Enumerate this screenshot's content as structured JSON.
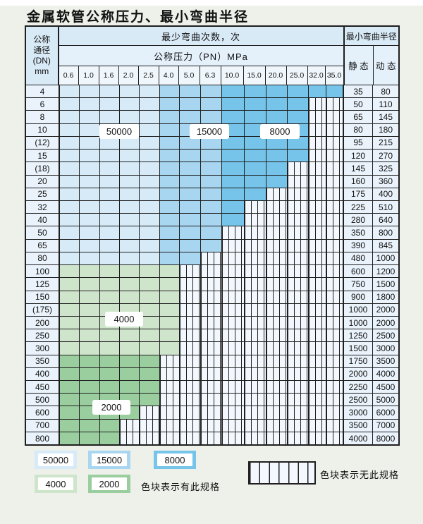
{
  "title": "金属软管公称压力、最小弯曲半径",
  "table": {
    "corner_header": [
      "公称",
      "通径",
      "(DN)",
      "mm"
    ],
    "bend_cycles_header": "最少弯曲次数，次",
    "pressure_header": "公称压力（PN）MPa",
    "radius_header": "最小弯曲半径",
    "static_header": "静 态",
    "dynamic_header": "动 态",
    "pressure_columns": [
      "0.6",
      "1.0",
      "1.6",
      "2.0",
      "2.5",
      "4.0",
      "5.0",
      "6.3",
      "10.0",
      "15.0",
      "20.0",
      "25.0",
      "32.0",
      "35.0"
    ],
    "rows": [
      {
        "dn": "4",
        "colored_cols": 14,
        "group": "blue",
        "static": "35",
        "dynamic": "80"
      },
      {
        "dn": "6",
        "colored_cols": 12,
        "group": "blue",
        "static": "50",
        "dynamic": "110"
      },
      {
        "dn": "8",
        "colored_cols": 12,
        "group": "blue",
        "static": "65",
        "dynamic": "145"
      },
      {
        "dn": "10",
        "colored_cols": 12,
        "group": "blue",
        "static": "80",
        "dynamic": "180"
      },
      {
        "dn": "(12)",
        "colored_cols": 12,
        "group": "blue",
        "static": "95",
        "dynamic": "215"
      },
      {
        "dn": "15",
        "colored_cols": 12,
        "group": "blue",
        "static": "120",
        "dynamic": "270"
      },
      {
        "dn": "(18)",
        "colored_cols": 11,
        "group": "blue",
        "static": "145",
        "dynamic": "325"
      },
      {
        "dn": "20",
        "colored_cols": 11,
        "group": "blue",
        "static": "160",
        "dynamic": "360"
      },
      {
        "dn": "25",
        "colored_cols": 10,
        "group": "blue",
        "static": "175",
        "dynamic": "400"
      },
      {
        "dn": "32",
        "colored_cols": 9,
        "group": "blue",
        "static": "225",
        "dynamic": "510"
      },
      {
        "dn": "40",
        "colored_cols": 9,
        "group": "blue",
        "static": "280",
        "dynamic": "640"
      },
      {
        "dn": "50",
        "colored_cols": 8,
        "group": "blue",
        "static": "350",
        "dynamic": "800"
      },
      {
        "dn": "65",
        "colored_cols": 8,
        "group": "blue",
        "static": "390",
        "dynamic": "845"
      },
      {
        "dn": "80",
        "colored_cols": 7,
        "group": "blue",
        "static": "480",
        "dynamic": "1000"
      },
      {
        "dn": "100",
        "colored_cols": 6,
        "group": "green_light",
        "static": "600",
        "dynamic": "1200"
      },
      {
        "dn": "125",
        "colored_cols": 6,
        "group": "green_light",
        "static": "750",
        "dynamic": "1500"
      },
      {
        "dn": "150",
        "colored_cols": 6,
        "group": "green_light",
        "static": "900",
        "dynamic": "1800"
      },
      {
        "dn": "(175)",
        "colored_cols": 6,
        "group": "green_light",
        "static": "1000",
        "dynamic": "2000"
      },
      {
        "dn": "200",
        "colored_cols": 6,
        "group": "green_light",
        "static": "1000",
        "dynamic": "2000"
      },
      {
        "dn": "250",
        "colored_cols": 6,
        "group": "green_light",
        "static": "1250",
        "dynamic": "2500"
      },
      {
        "dn": "300",
        "colored_cols": 6,
        "group": "green_light",
        "static": "1500",
        "dynamic": "3000"
      },
      {
        "dn": "350",
        "colored_cols": 5,
        "group": "green_dark",
        "static": "1750",
        "dynamic": "3500"
      },
      {
        "dn": "400",
        "colored_cols": 5,
        "group": "green_dark",
        "static": "2000",
        "dynamic": "4000"
      },
      {
        "dn": "450",
        "colored_cols": 5,
        "group": "green_dark",
        "static": "2250",
        "dynamic": "4500"
      },
      {
        "dn": "500",
        "colored_cols": 5,
        "group": "green_dark",
        "static": "2500",
        "dynamic": "5000"
      },
      {
        "dn": "600",
        "colored_cols": 4,
        "group": "green_dark",
        "static": "3000",
        "dynamic": "6000"
      },
      {
        "dn": "700",
        "colored_cols": 3,
        "group": "green_dark",
        "static": "3500",
        "dynamic": "7000"
      },
      {
        "dn": "800",
        "colored_cols": 3,
        "group": "green_dark",
        "static": "4000",
        "dynamic": "8000"
      }
    ]
  },
  "overlay_labels": [
    {
      "text": "50000"
    },
    {
      "text": "15000"
    },
    {
      "text": "8000"
    },
    {
      "text": "4000"
    },
    {
      "text": "2000"
    }
  ],
  "legend": {
    "items": [
      {
        "label": "50000",
        "color_key": "blue_light"
      },
      {
        "label": "15000",
        "color_key": "blue_medium"
      },
      {
        "label": "8000",
        "color_key": "blue_dark"
      },
      {
        "label": "4000",
        "color_key": "green_light"
      },
      {
        "label": "2000",
        "color_key": "green_dark"
      }
    ],
    "has_spec_note": "色块表示有此规格",
    "no_spec_note": "色块表示无此规格"
  },
  "colors": {
    "blue_light": "#d6eaf8",
    "blue_medium": "#a8d6f0",
    "blue_dark": "#76c4ea",
    "green_light": "#cfe5cb",
    "green_dark": "#9bce9f",
    "header_bg": "#d9eaf7",
    "header_bg2": "#e4f0fa",
    "tick_bg": "#f0f7fc",
    "label_cell_bg": "#eaf3fb",
    "hatch_bg": "#f2f8fd",
    "border": "#1f1f1f",
    "page_bg": "#eef1ea"
  }
}
